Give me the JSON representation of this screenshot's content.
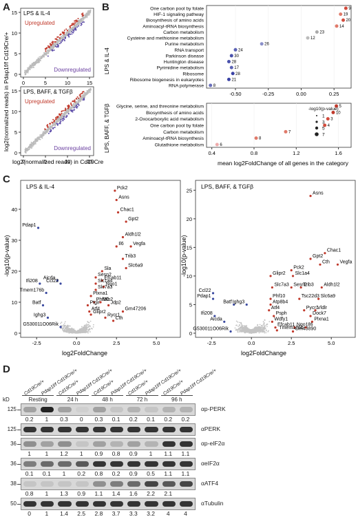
{
  "panels": {
    "A": "A",
    "B": "B",
    "C": "C",
    "D": "D"
  },
  "panel_a": {
    "ylabel": "log2(normalized reads) in Pdap1f/f Cd19Cre/+",
    "xlabel": "log2(normalized reads) in Cd19Cre/+",
    "plots": [
      {
        "condition": "LPS & IL-4",
        "up": "Upregulated",
        "down": "Downregulated",
        "ticks_x": [
          "0",
          "5",
          "10",
          "15"
        ],
        "ticks_y": [
          "0",
          "5",
          "10",
          "15"
        ]
      },
      {
        "condition": "LPS, BAFF, & TGFβ",
        "up": "Upregulated",
        "down": "Downregulated",
        "ticks_x": [
          "0",
          "5",
          "10",
          "15"
        ],
        "ticks_y": [
          "0",
          "5",
          "10",
          "15"
        ]
      }
    ]
  },
  "panel_b": {
    "xlabel": "mean log2FoldChange of all genes in the category",
    "top": {
      "condition": "LPS & IL-4",
      "ticks": [
        "-0.50",
        "-0.25",
        "0.00",
        "0.25"
      ],
      "rows": [
        {
          "label": "One carbon pool by folate",
          "x": 0.34,
          "n": "9",
          "color": "#d24b3c"
        },
        {
          "label": "HIF-1 signaling pathway",
          "x": 0.3,
          "n": "19",
          "color": "#e07a6a"
        },
        {
          "label": "Biosynthesis of amino acids",
          "x": 0.32,
          "n": "20",
          "color": "#d24b3c"
        },
        {
          "label": "Aminoacyl-tRNA biosynthesis",
          "x": 0.27,
          "n": "14",
          "color": "#e07a6a"
        },
        {
          "label": "Carbon metabolism",
          "x": 0.12,
          "n": "23",
          "color": "#aaa"
        },
        {
          "label": "Cysteine and methionine metabolism",
          "x": 0.05,
          "n": "12",
          "color": "#bbb"
        },
        {
          "label": "Purine metabolism",
          "x": -0.3,
          "n": "26",
          "color": "#8a8fc9"
        },
        {
          "label": "RNA transport",
          "x": -0.5,
          "n": "24",
          "color": "#5b62b5"
        },
        {
          "label": "Parkinson disease",
          "x": -0.53,
          "n": "30",
          "color": "#4a52ad"
        },
        {
          "label": "Huntington disease",
          "x": -0.55,
          "n": "28",
          "color": "#4a52ad"
        },
        {
          "label": "Pyrimidine metabolism",
          "x": -0.53,
          "n": "17",
          "color": "#5b62b5"
        },
        {
          "label": "Ribosome",
          "x": -0.52,
          "n": "28",
          "color": "#3a42a5"
        },
        {
          "label": "Ribosome biogenesis in eukaryotes",
          "x": -0.55,
          "n": "21",
          "color": "#3a42a5"
        },
        {
          "label": "RNA polymerase",
          "x": -0.69,
          "n": "8",
          "color": "#6a70bb"
        }
      ]
    },
    "bottom": {
      "condition": "LPS, BAFF, & TGFβ",
      "ticks": [
        "0.4",
        "0.8",
        "1.2",
        "1.6"
      ],
      "rows": [
        {
          "label": "Glycine, serine, and threonine metabolism",
          "x": 1.58,
          "n": "5",
          "color": "#c0392b"
        },
        {
          "label": "Biosynthesis of amino acids",
          "x": 1.55,
          "n": "10",
          "color": "#c0392b"
        },
        {
          "label": "2-Oxocarboxylic acid metabolism",
          "x": 1.5,
          "n": "3",
          "color": "#d24b3c"
        },
        {
          "label": "One carbon pool by folate",
          "x": 1.47,
          "n": "4",
          "color": "#d24b3c"
        },
        {
          "label": "Carbon metabolism",
          "x": 1.1,
          "n": "7",
          "color": "#e07a6a"
        },
        {
          "label": "Aminoacyl-tRNA biosynthesis",
          "x": 0.82,
          "n": "8",
          "color": "#e07a6a"
        },
        {
          "label": "Glutathione metabolism",
          "x": 0.45,
          "n": "6",
          "color": "#eaa"
        }
      ],
      "legend_title": "-log10(p-value)",
      "legend": [
        "1",
        "3",
        "5",
        "7"
      ]
    }
  },
  "panel_c": {
    "ylabel": "-log10(p-value)",
    "xlabel": "log2FoldChange",
    "left": {
      "condition": "LPS & IL-4",
      "ticks_x": [
        "-2.5",
        "0.0",
        "2.5",
        "5.0"
      ],
      "ticks_y": [
        "0",
        "10",
        "20",
        "30",
        "40"
      ],
      "genes": [
        {
          "g": "Pck2",
          "x": 2.4,
          "y": 46
        },
        {
          "g": "Asns",
          "x": 2.5,
          "y": 43
        },
        {
          "g": "Chac1",
          "x": 2.6,
          "y": 39
        },
        {
          "g": "Gpt2",
          "x": 3.1,
          "y": 36
        },
        {
          "g": "Pdap1",
          "x": -2.4,
          "y": 34
        },
        {
          "g": "Aldh1l2",
          "x": 2.9,
          "y": 31
        },
        {
          "g": "Vegfa",
          "x": 3.4,
          "y": 28
        },
        {
          "g": "Il6",
          "x": 2.5,
          "y": 28
        },
        {
          "g": "Trib3",
          "x": 2.9,
          "y": 24
        },
        {
          "g": "Slc6a9",
          "x": 3.1,
          "y": 21
        },
        {
          "g": "Sla",
          "x": 1.6,
          "y": 20
        },
        {
          "g": "Sesn2",
          "x": 1.2,
          "y": 18
        },
        {
          "g": "Aicda",
          "x": -1.2,
          "y": 17
        },
        {
          "g": "Ccl22",
          "x": -1.0,
          "y": 16
        },
        {
          "g": "Ifi208",
          "x": -2.3,
          "y": 16
        },
        {
          "g": "Efcab11",
          "x": 1.6,
          "y": 17
        },
        {
          "g": "Slc1a4",
          "x": 1.2,
          "y": 16
        },
        {
          "g": "Nqo1",
          "x": 1.7,
          "y": 15
        },
        {
          "g": "Slc7a3",
          "x": 1.2,
          "y": 14
        },
        {
          "g": "Plxna1",
          "x": 0.9,
          "y": 12
        },
        {
          "g": "Tmem176b",
          "x": -1.9,
          "y": 13
        },
        {
          "g": "Mlb2",
          "x": 1.5,
          "y": 10
        },
        {
          "g": "Jdp2",
          "x": 2.0,
          "y": 9
        },
        {
          "g": "Phf10",
          "x": 1.1,
          "y": 10
        },
        {
          "g": "Ptgir",
          "x": 0.7,
          "y": 9
        },
        {
          "g": "Batf",
          "x": -2.1,
          "y": 9
        },
        {
          "g": "Atf4",
          "x": 0.8,
          "y": 7
        },
        {
          "g": "Glipr2",
          "x": 0.9,
          "y": 6
        },
        {
          "g": "Gm47206",
          "x": 2.9,
          "y": 7
        },
        {
          "g": "Rycr1",
          "x": 1.8,
          "y": 5
        },
        {
          "g": "Cth",
          "x": 2.3,
          "y": 4
        },
        {
          "g": "Ighg3",
          "x": -1.8,
          "y": 5
        },
        {
          "g": "G530011O06Rik",
          "x": -1.0,
          "y": 2
        }
      ]
    },
    "right": {
      "condition": "LPS, BAFF, & TGFβ",
      "ticks_x": [
        "-2.5",
        "0.0",
        "2.5",
        "5.0"
      ],
      "ticks_y": [
        "0",
        "5",
        "10",
        "15",
        "20",
        "25"
      ],
      "genes": [
        {
          "g": "Asns",
          "x": 3.7,
          "y": 24
        },
        {
          "g": "Chac1",
          "x": 4.6,
          "y": 14
        },
        {
          "g": "Gpt2",
          "x": 3.7,
          "y": 13
        },
        {
          "g": "Cth",
          "x": 4.3,
          "y": 12
        },
        {
          "g": "Vegfa",
          "x": 5.4,
          "y": 12
        },
        {
          "g": "Pck2",
          "x": 2.5,
          "y": 11
        },
        {
          "g": "Slc1a4",
          "x": 2.6,
          "y": 10
        },
        {
          "g": "Glipr2",
          "x": 1.2,
          "y": 10
        },
        {
          "g": "Sesn2",
          "x": 2.5,
          "y": 8
        },
        {
          "g": "Trib3",
          "x": 3.1,
          "y": 8
        },
        {
          "g": "Aldh1l2",
          "x": 4.4,
          "y": 8
        },
        {
          "g": "Slc7a3",
          "x": 1.3,
          "y": 8
        },
        {
          "g": "Tsc22d3",
          "x": 3.0,
          "y": 6
        },
        {
          "g": "Slc6a9",
          "x": 4.2,
          "y": 6
        },
        {
          "g": "Ccl22",
          "x": -2.4,
          "y": 7
        },
        {
          "g": "Phf10",
          "x": 1.2,
          "y": 6
        },
        {
          "g": "Atp8b4",
          "x": 1.2,
          "y": 5
        },
        {
          "g": "Pdap1",
          "x": -2.4,
          "y": 6
        },
        {
          "g": "Batf",
          "x": -1.1,
          "y": 5
        },
        {
          "g": "Ighg3",
          "x": -0.3,
          "y": 5
        },
        {
          "g": "Pycr1",
          "x": 3.3,
          "y": 4
        },
        {
          "g": "Atf4",
          "x": 1.1,
          "y": 4
        },
        {
          "g": "Dock7",
          "x": 3.7,
          "y": 3
        },
        {
          "g": "Ifi208",
          "x": -2.3,
          "y": 3
        },
        {
          "g": "Aicda",
          "x": -1.7,
          "y": 2
        },
        {
          "g": "Psph",
          "x": 1.4,
          "y": 3
        },
        {
          "g": "Vldlr",
          "x": 4.0,
          "y": 4
        },
        {
          "g": "Plxna1",
          "x": 3.8,
          "y": 2
        },
        {
          "g": "Wdfy1",
          "x": 1.3,
          "y": 2
        },
        {
          "g": "Nqo1",
          "x": 2.7,
          "y": 1
        },
        {
          "g": "Il6",
          "x": 3.4,
          "y": 1
        },
        {
          "g": "Efcab11",
          "x": 1.5,
          "y": 1
        },
        {
          "g": "Tmem176b",
          "x": 1.6,
          "y": 0.5
        },
        {
          "g": "G530011O06Rik",
          "x": -1.3,
          "y": 0.3
        },
        {
          "g": "Gm43890",
          "x": 2.6,
          "y": 0.3
        }
      ]
    }
  },
  "panel_d": {
    "lanes": [
      "Cd19Cre/+",
      "Pdap1f/f Cd19Cre/+",
      "Cd19Cre/+",
      "Pdap1f/f Cd19Cre/+",
      "Cd19Cre/+",
      "Pdap1f/f Cd19Cre/+",
      "Cd19Cre/+",
      "Pdap1f/f Cd19Cre/+",
      "Cd19Cre/+",
      "Pdap1f/f Cd19Cre/+"
    ],
    "timepoints": [
      "Resting",
      "24 h",
      "48 h",
      "72 h",
      "96 h"
    ],
    "kd_label": "kD",
    "blots": [
      {
        "ab": "αp-PERK",
        "kd": "125",
        "quant": [
          "0.2",
          "1",
          "0.3",
          "0",
          "0.3",
          "0.1",
          "0.2",
          "0.1",
          "0.2",
          "0.2"
        ],
        "intensity": [
          0.3,
          1,
          0.3,
          0,
          0.3,
          0.1,
          0.2,
          0.1,
          0.2,
          0.2
        ]
      },
      {
        "ab": "αPERK",
        "kd": "125",
        "quant": [],
        "intensity": [
          0.9,
          0.9,
          0.9,
          0.9,
          0.9,
          0.9,
          0.9,
          0.9,
          0.9,
          0.9
        ]
      },
      {
        "ab": "αp-eIF2α",
        "kd": "36",
        "quant": [
          "1",
          "1",
          "1.2",
          "1",
          "0.9",
          "0.8",
          "0.9",
          "1",
          "1.1",
          "1.1"
        ],
        "intensity": [
          0.4,
          0.3,
          0.4,
          0.1,
          0.3,
          0.2,
          0.3,
          0.2,
          0.9,
          0.9
        ]
      },
      {
        "ab": "αeIF2α",
        "kd": "36",
        "quant": [
          "0.1",
          "0.1",
          "1",
          "0.2",
          "0.8",
          "0.2",
          "0.9",
          "0.5",
          "1.1",
          "1.1"
        ],
        "intensity": [
          0.5,
          0.6,
          0.6,
          0.7,
          0.9,
          0.9,
          0.9,
          0.9,
          0.9,
          0.9
        ]
      },
      {
        "ab": "αATF4",
        "kd": "38",
        "quant": [
          "0.8",
          "1",
          "1.3",
          "0.9",
          "1.1",
          "1.4",
          "1.6",
          "2.2",
          "2.1",
          ""
        ],
        "intensity": [
          0.1,
          0.1,
          0.1,
          0.1,
          0.4,
          0.5,
          0.6,
          0.8,
          0.7,
          0.8
        ]
      },
      {
        "ab": "αTubulin",
        "kd": "50",
        "quant": [
          "0",
          "1",
          "1.4",
          "2.5",
          "2.8",
          "3.7",
          "3.3",
          "3.2",
          "4",
          "4"
        ],
        "intensity": [
          0.9,
          0.9,
          0.9,
          0.9,
          0.9,
          0.9,
          0.9,
          0.9,
          0.9,
          0.9
        ]
      }
    ]
  }
}
